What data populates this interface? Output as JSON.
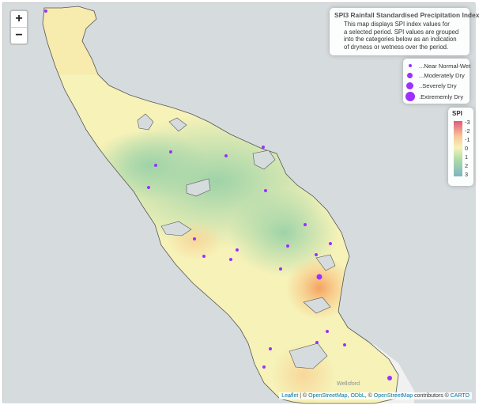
{
  "zoom": {
    "in_label": "+",
    "out_label": "−"
  },
  "info": {
    "title": "SPI3 Rainfall Standardised Precipitation Index",
    "lines": [
      "This map displays SPI index values for",
      "a selected period. SPI values are grouped",
      "into the categories below as an indication",
      "of dryness or wetness over the period."
    ]
  },
  "legend": {
    "items": [
      {
        "label": "...Near Normal-Wet"
      },
      {
        "label": "...Moderately Dry"
      },
      {
        "label": "..Severely Dry"
      },
      {
        "label": ".Extrememly Dry"
      }
    ],
    "color": "#9b30ff"
  },
  "spi_scale": {
    "title": "SPI",
    "ticks": [
      "-3",
      "-2",
      "-1",
      "0",
      "1",
      "2",
      "3"
    ]
  },
  "place_label": "Wellsford",
  "attribution": {
    "leaflet": "Leaflet",
    "sep1": " | © ",
    "osm": "OpenStreetMap",
    "sep2": ", ",
    "odbl": "ODbL",
    "sep3": ", © ",
    "osm2": "OpenStreetMap",
    "sep4": " contributors © ",
    "carto": "CARTO"
  },
  "colors": {
    "dry": "#f6b26b",
    "normal": "#f6f2b8",
    "wet": "#9ed3a8",
    "station": "#9b30ff"
  }
}
